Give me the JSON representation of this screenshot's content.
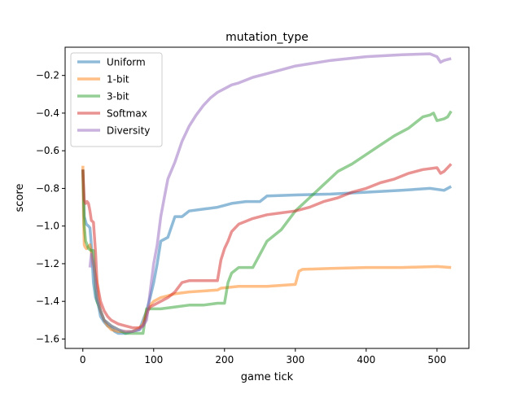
{
  "chart_data": {
    "type": "line",
    "title": "mutation_type",
    "xlabel": "game tick",
    "ylabel": "score",
    "xlim": [
      -25,
      545
    ],
    "ylim": [
      -1.65,
      -0.05
    ],
    "xticks": [
      0,
      100,
      200,
      300,
      400,
      500
    ],
    "yticks": [
      -1.6,
      -1.4,
      -1.2,
      -1.0,
      -0.8,
      -0.6,
      -0.4,
      -0.2
    ],
    "xtick_labels": [
      "0",
      "100",
      "200",
      "300",
      "400",
      "500"
    ],
    "ytick_labels": [
      "−1.6",
      "−1.4",
      "−1.2",
      "−1.0",
      "−0.8",
      "−0.6",
      "−0.4",
      "−0.2"
    ],
    "grid": false,
    "legend_position": "upper left",
    "series": [
      {
        "name": "Uniform",
        "color": "#1f77b4",
        "x": [
          0,
          2,
          5,
          8,
          10,
          12,
          15,
          18,
          20,
          22,
          25,
          30,
          35,
          40,
          45,
          50,
          60,
          70,
          80,
          90,
          95,
          100,
          105,
          110,
          115,
          120,
          130,
          140,
          150,
          170,
          190,
          200,
          210,
          230,
          250,
          260,
          300,
          350,
          400,
          450,
          490,
          510,
          520
        ],
        "y": [
          -0.7,
          -0.95,
          -0.99,
          -1.0,
          -1.01,
          -1.1,
          -1.3,
          -1.38,
          -1.4,
          -1.42,
          -1.48,
          -1.51,
          -1.53,
          -1.54,
          -1.56,
          -1.57,
          -1.57,
          -1.56,
          -1.55,
          -1.45,
          -1.38,
          -1.3,
          -1.2,
          -1.08,
          -1.07,
          -1.06,
          -0.95,
          -0.95,
          -0.92,
          -0.91,
          -0.9,
          -0.89,
          -0.88,
          -0.87,
          -0.87,
          -0.84,
          -0.835,
          -0.83,
          -0.82,
          -0.81,
          -0.8,
          -0.81,
          -0.79
        ]
      },
      {
        "name": "1-bit",
        "color": "#ff7f0e",
        "x": [
          0,
          1,
          2,
          3,
          5,
          10,
          15,
          20,
          22,
          25,
          30,
          35,
          40,
          50,
          60,
          70,
          80,
          85,
          90,
          95,
          100,
          105,
          110,
          120,
          130,
          150,
          190,
          195,
          220,
          260,
          300,
          305,
          310,
          350,
          400,
          450,
          500,
          520
        ],
        "y": [
          -0.68,
          -0.95,
          -1.1,
          -1.11,
          -1.12,
          -1.1,
          -1.2,
          -1.3,
          -1.38,
          -1.45,
          -1.5,
          -1.53,
          -1.55,
          -1.56,
          -1.56,
          -1.56,
          -1.54,
          -1.52,
          -1.45,
          -1.42,
          -1.4,
          -1.39,
          -1.38,
          -1.37,
          -1.36,
          -1.35,
          -1.34,
          -1.33,
          -1.32,
          -1.32,
          -1.31,
          -1.24,
          -1.23,
          -1.225,
          -1.22,
          -1.22,
          -1.215,
          -1.22
        ]
      },
      {
        "name": "3-bit",
        "color": "#2ca02c",
        "x": [
          0,
          2,
          4,
          6,
          8,
          12,
          15,
          18,
          20,
          25,
          30,
          40,
          50,
          60,
          70,
          80,
          85,
          90,
          95,
          100,
          110,
          130,
          150,
          170,
          190,
          200,
          205,
          210,
          220,
          240,
          250,
          260,
          270,
          280,
          300,
          320,
          340,
          360,
          380,
          400,
          420,
          440,
          460,
          480,
          490,
          495,
          500,
          510,
          515,
          520
        ],
        "y": [
          -0.7,
          -1.0,
          -1.08,
          -1.1,
          -1.12,
          -1.13,
          -1.13,
          -1.33,
          -1.4,
          -1.45,
          -1.5,
          -1.53,
          -1.55,
          -1.57,
          -1.57,
          -1.57,
          -1.57,
          -1.44,
          -1.44,
          -1.44,
          -1.44,
          -1.43,
          -1.42,
          -1.42,
          -1.41,
          -1.41,
          -1.3,
          -1.25,
          -1.22,
          -1.22,
          -1.15,
          -1.08,
          -1.05,
          -1.02,
          -0.92,
          -0.85,
          -0.78,
          -0.71,
          -0.67,
          -0.62,
          -0.57,
          -0.52,
          -0.48,
          -0.42,
          -0.41,
          -0.4,
          -0.44,
          -0.43,
          -0.42,
          -0.39
        ]
      },
      {
        "name": "Softmax",
        "color": "#d62728",
        "x": [
          0,
          2,
          4,
          6,
          8,
          10,
          12,
          15,
          18,
          20,
          25,
          30,
          35,
          40,
          50,
          60,
          70,
          80,
          85,
          88,
          92,
          95,
          100,
          105,
          110,
          120,
          130,
          140,
          150,
          160,
          180,
          190,
          195,
          200,
          205,
          210,
          220,
          240,
          260,
          280,
          300,
          320,
          340,
          360,
          380,
          400,
          420,
          440,
          460,
          480,
          500,
          505,
          510,
          520
        ],
        "y": [
          -0.7,
          -0.86,
          -0.88,
          -0.87,
          -0.88,
          -0.92,
          -0.97,
          -0.98,
          -1.14,
          -1.3,
          -1.4,
          -1.45,
          -1.48,
          -1.5,
          -1.52,
          -1.53,
          -1.54,
          -1.54,
          -1.53,
          -1.5,
          -1.45,
          -1.43,
          -1.42,
          -1.41,
          -1.4,
          -1.38,
          -1.35,
          -1.3,
          -1.29,
          -1.29,
          -1.29,
          -1.29,
          -1.18,
          -1.12,
          -1.08,
          -1.03,
          -0.99,
          -0.96,
          -0.94,
          -0.93,
          -0.92,
          -0.9,
          -0.87,
          -0.85,
          -0.82,
          -0.8,
          -0.77,
          -0.75,
          -0.72,
          -0.7,
          -0.69,
          -0.72,
          -0.71,
          -0.67
        ]
      },
      {
        "name": "Diversity",
        "color": "#9467bd",
        "x": [
          10,
          12,
          15,
          18,
          20,
          25,
          30,
          40,
          50,
          60,
          70,
          80,
          85,
          90,
          95,
          100,
          105,
          110,
          115,
          120,
          130,
          140,
          150,
          160,
          170,
          180,
          190,
          200,
          210,
          220,
          240,
          260,
          280,
          300,
          350,
          400,
          450,
          490,
          500,
          505,
          510,
          520
        ],
        "y": [
          -1.22,
          -1.15,
          -1.2,
          -1.3,
          -1.38,
          -1.45,
          -1.5,
          -1.53,
          -1.55,
          -1.56,
          -1.56,
          -1.55,
          -1.53,
          -1.5,
          -1.35,
          -1.2,
          -1.1,
          -0.95,
          -0.85,
          -0.75,
          -0.66,
          -0.55,
          -0.47,
          -0.41,
          -0.36,
          -0.32,
          -0.29,
          -0.27,
          -0.25,
          -0.24,
          -0.21,
          -0.19,
          -0.17,
          -0.15,
          -0.12,
          -0.1,
          -0.09,
          -0.085,
          -0.1,
          -0.13,
          -0.12,
          -0.11
        ]
      }
    ]
  }
}
